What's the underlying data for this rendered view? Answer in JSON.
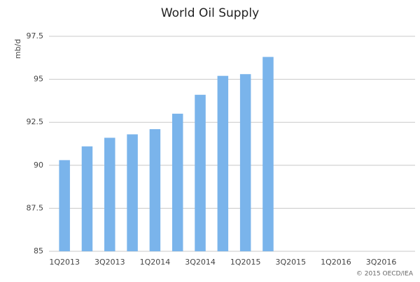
{
  "chart_data": {
    "type": "bar",
    "title": "World Oil Supply",
    "y_label": "mb/d",
    "categories": [
      "1Q2013",
      null,
      "3Q2013",
      null,
      "1Q2014",
      null,
      "3Q2014",
      null,
      "1Q2015",
      null,
      "3Q2015",
      null,
      "1Q2016",
      null,
      "3Q2016",
      null
    ],
    "values": [
      90.3,
      91.1,
      91.6,
      91.8,
      92.1,
      93.0,
      94.1,
      95.2,
      95.3,
      96.3,
      null,
      null,
      null,
      null,
      null,
      null
    ],
    "color": "#7ab4eb",
    "ylim": [
      85,
      97.5
    ],
    "yticks": [
      85,
      87.5,
      90,
      92.5,
      95,
      97.5
    ],
    "grid": true,
    "note": "© 2015 OECD/IEA"
  }
}
